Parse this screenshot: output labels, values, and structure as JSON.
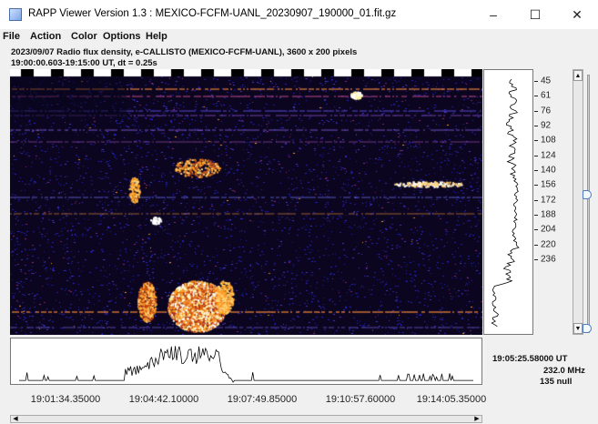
{
  "window": {
    "title": "RAPP Viewer Version 1.3 : MEXICO-FCFM-UANL_20230907_190000_01.fit.gz",
    "minimize_glyph": "–",
    "maximize_glyph": "☐",
    "close_glyph": "✕"
  },
  "menu": [
    "File",
    "Action",
    "Color",
    "Options",
    "Help"
  ],
  "info": {
    "line1": "2023/09/07  Radio flux density, e-CALLISTO (MEXICO-FCFM-UANL),  3600 x 200 pixels",
    "line2": "19:00:00.603-19:15:00 UT,  dt = 0.25s"
  },
  "frequency_axis": {
    "labels": [
      "45",
      "61",
      "76",
      "92",
      "108",
      "124",
      "140",
      "156",
      "172",
      "188",
      "204",
      "220",
      "236"
    ]
  },
  "time_axis": {
    "labels": [
      "19:01:34.35000",
      "19:04:42.10000",
      "19:07:49.85000",
      "19:10:57.60000",
      "19:14:05.35000"
    ]
  },
  "cursor_readout": {
    "time": "19:05:25.58000 UT",
    "frequency": "232.0 MHz",
    "value": "135 null"
  },
  "scrollbar": {
    "up_glyph": "▲",
    "down_glyph": "▼",
    "left_glyph": "◀",
    "right_glyph": "▶"
  },
  "colors": {
    "spectrogram_background": "#0b0520",
    "noise_blue": "#2323b8",
    "burst_orange": "#ff9a1f",
    "burst_yellow": "#fff3a0"
  }
}
